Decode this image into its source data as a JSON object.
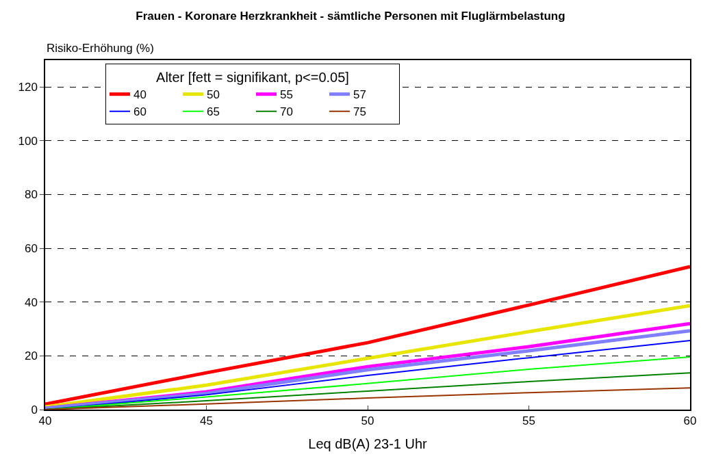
{
  "chart_data": {
    "type": "line",
    "title": "Frauen - Koronare Herzkrankheit - sämtliche Personen mit Fluglärmbelastung",
    "xlabel": "Leq dB(A) 23-1 Uhr",
    "ylabel": "Risiko-Erhöhung (%)",
    "legend_title": "Alter [fett = signifikant, p<=0.05]",
    "x": [
      40,
      45,
      50,
      55,
      60
    ],
    "series": [
      {
        "name": "40",
        "color": "#ff0000",
        "values": [
          2,
          13.7,
          24.9,
          38.9,
          53.2
        ]
      },
      {
        "name": "50",
        "color": "#e6e600",
        "values": [
          1,
          9.1,
          19.1,
          29,
          38.7
        ]
      },
      {
        "name": "55",
        "color": "#ff00ff",
        "values": [
          0.5,
          6.6,
          16,
          23.4,
          32
        ]
      },
      {
        "name": "57",
        "color": "#8080ff",
        "values": [
          0.5,
          6,
          14.8,
          21.9,
          29.3
        ]
      },
      {
        "name": "60",
        "color": "#0000ff",
        "values": [
          0,
          5.5,
          12.7,
          19.3,
          25.7
        ]
      },
      {
        "name": "65",
        "color": "#00ff00",
        "values": [
          0,
          4.7,
          9.7,
          15,
          19.6
        ]
      },
      {
        "name": "70",
        "color": "#008000",
        "values": [
          0,
          3.3,
          6.9,
          10.4,
          13.7
        ]
      },
      {
        "name": "75",
        "color": "#993300",
        "values": [
          0,
          2.1,
          4.3,
          6.3,
          8.1
        ]
      }
    ],
    "xlim": [
      40,
      60
    ],
    "xticks": [
      40,
      45,
      50,
      55,
      60
    ],
    "ylim": [
      0,
      130
    ],
    "yticks": [
      0,
      20,
      40,
      60,
      80,
      100,
      120
    ],
    "grid": "y",
    "legend": "top left",
    "marker": "none",
    "line_style": "solid"
  }
}
